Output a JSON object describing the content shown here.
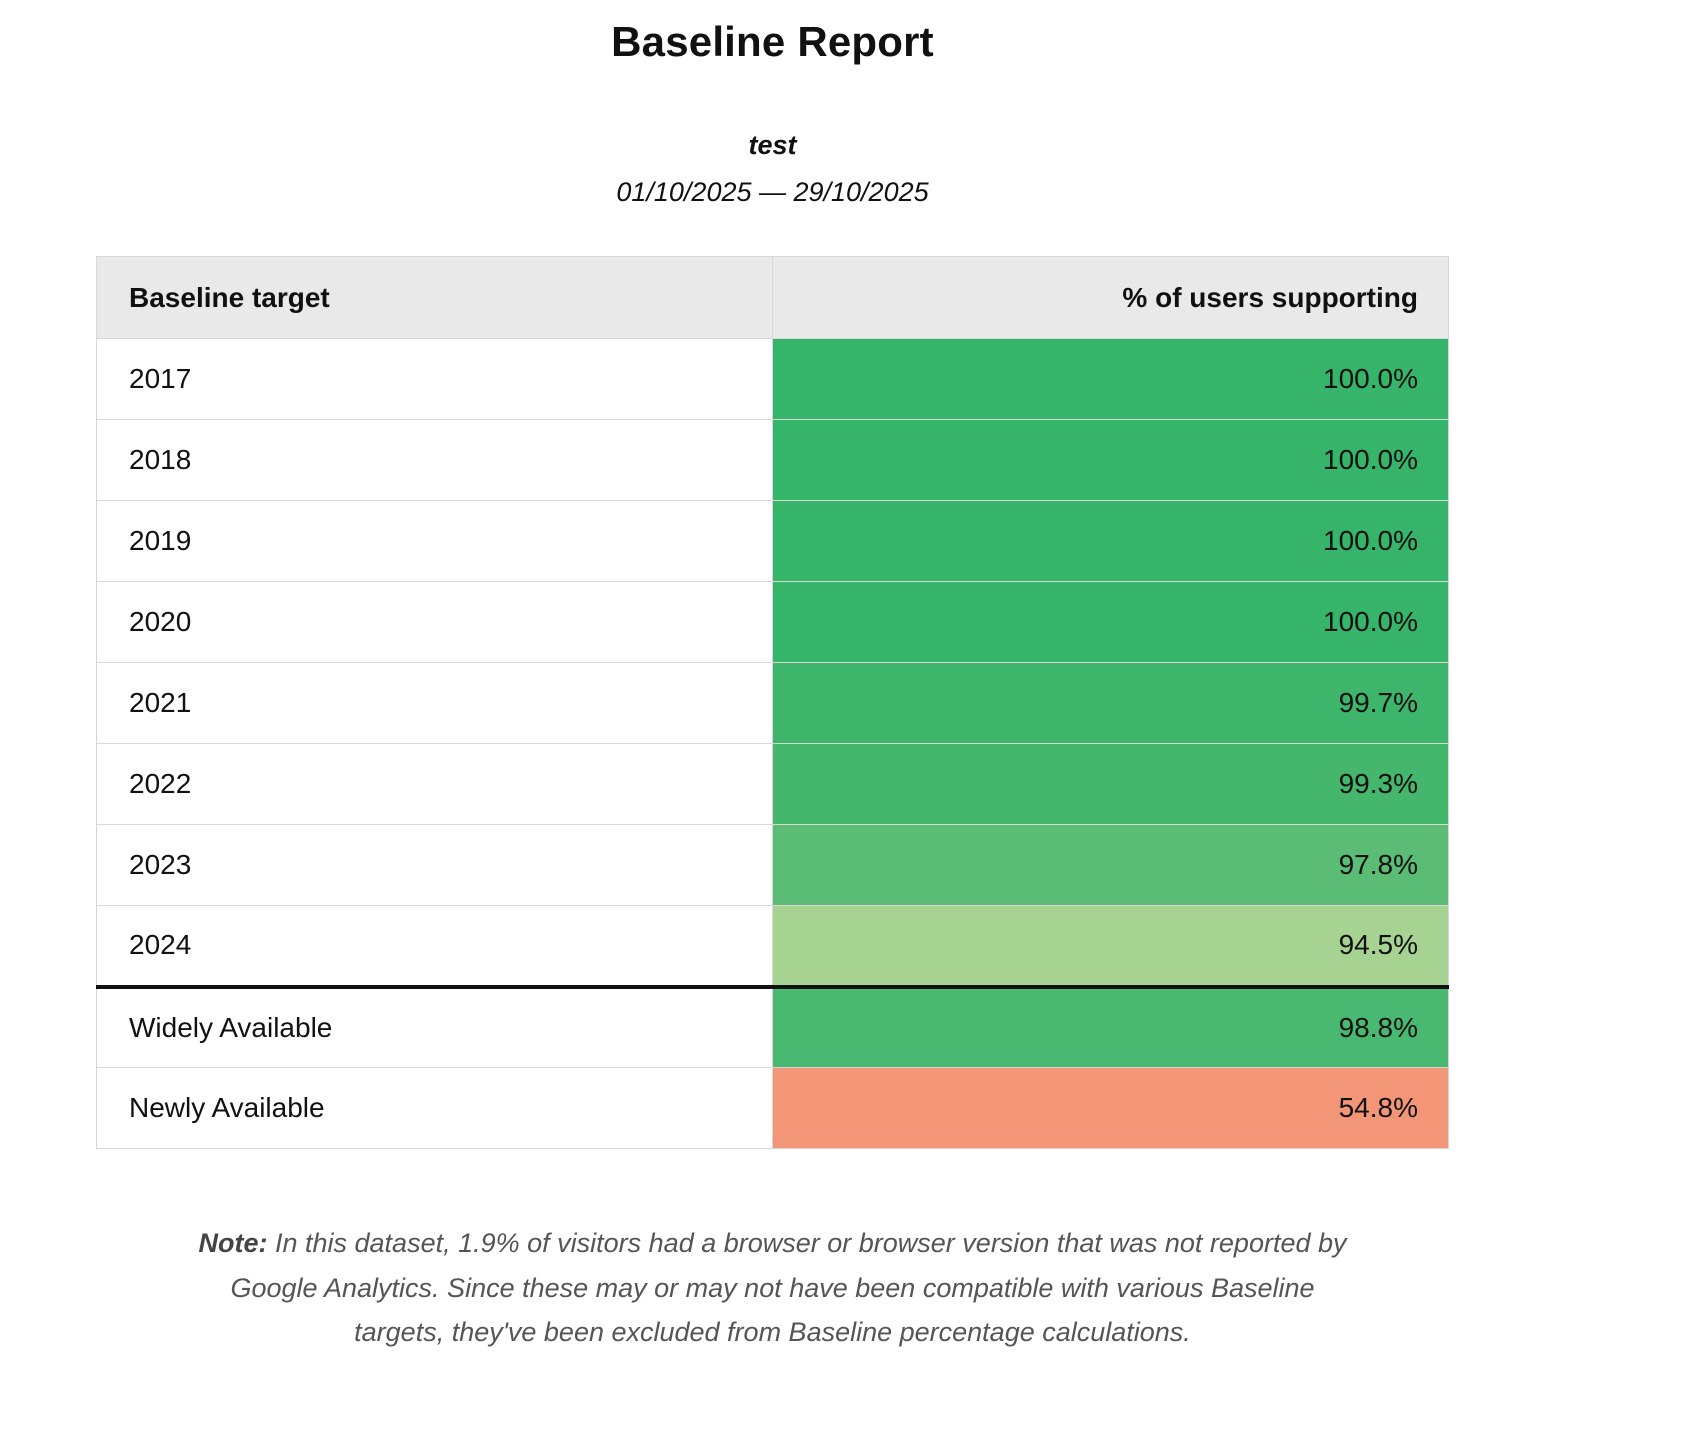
{
  "report": {
    "title": "Baseline Report",
    "subtitle": "test",
    "date_range": "01/10/2025 — 29/10/2025"
  },
  "table": {
    "headers": [
      "Baseline target",
      "% of users supporting"
    ],
    "year_rows": [
      {
        "label": "2017",
        "value": "100.0%",
        "color": "#36b469"
      },
      {
        "label": "2018",
        "value": "100.0%",
        "color": "#36b469"
      },
      {
        "label": "2019",
        "value": "100.0%",
        "color": "#36b469"
      },
      {
        "label": "2020",
        "value": "100.0%",
        "color": "#36b469"
      },
      {
        "label": "2021",
        "value": "99.7%",
        "color": "#3db56b"
      },
      {
        "label": "2022",
        "value": "99.3%",
        "color": "#44b76d"
      },
      {
        "label": "2023",
        "value": "97.8%",
        "color": "#5abc75"
      },
      {
        "label": "2024",
        "value": "94.5%",
        "color": "#a6d391"
      }
    ],
    "baseline_rows": [
      {
        "label": "Widely Available",
        "value": "98.8%",
        "color": "#49b971"
      },
      {
        "label": "Newly Available",
        "value": "54.8%",
        "color": "#f39678"
      }
    ]
  },
  "note": {
    "label": "Note:",
    "text": " In this dataset, 1.9% of visitors had a browser or browser version that was not reported by Google Analytics. Since these may or may not have been compatible with various Baseline targets, they've been excluded from Baseline percentage calculations."
  }
}
